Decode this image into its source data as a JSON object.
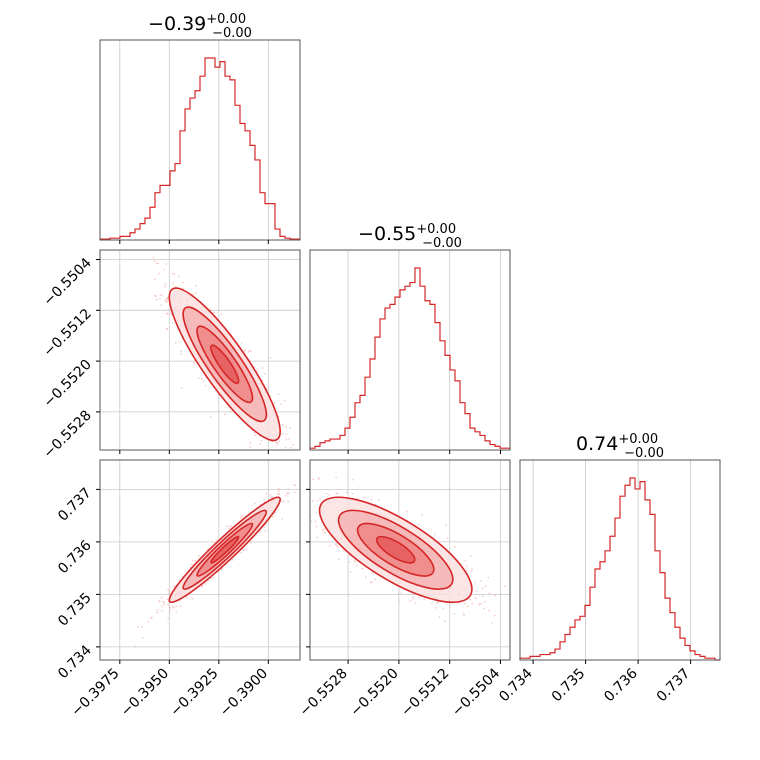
{
  "chart_data": {
    "type": "corner",
    "color": "#d62728",
    "grid": true,
    "titles": [
      {
        "value": "−0.39",
        "plus": "+0.00",
        "minus": "−0.00"
      },
      {
        "value": "−0.55",
        "plus": "+0.00",
        "minus": "−0.00"
      },
      {
        "value": "0.74",
        "plus": "+0.00",
        "minus": "−0.00"
      }
    ],
    "params": [
      {
        "range": [
          -0.3985,
          -0.3884
        ],
        "ticks": [
          -0.3975,
          -0.395,
          -0.3925,
          -0.39
        ],
        "tick_labels": [
          "−0.3975",
          "−0.3950",
          "−0.3925",
          "−0.3900"
        ]
      },
      {
        "range": [
          -0.5534,
          -0.55025
        ],
        "ticks": [
          -0.5528,
          -0.552,
          -0.5512,
          -0.5504
        ],
        "tick_labels": [
          "−0.5528",
          "−0.5520",
          "−0.5512",
          "−0.5504"
        ]
      },
      {
        "range": [
          0.73375,
          0.73756
        ],
        "ticks": [
          0.734,
          0.735,
          0.736,
          0.737
        ],
        "tick_labels": [
          "0.734",
          "0.735",
          "0.736",
          "0.737"
        ]
      }
    ],
    "histograms": [
      {
        "bin_count": 40,
        "counts": [
          0.5,
          0.5,
          1,
          1,
          2,
          2,
          4,
          6,
          9,
          12,
          18,
          26,
          30,
          30,
          38,
          42,
          60,
          72,
          78,
          82,
          90,
          100,
          100,
          95,
          98,
          90,
          88,
          74,
          64,
          60,
          52,
          44,
          26,
          20,
          20,
          6,
          2,
          1,
          0.5,
          0.5
        ]
      },
      {
        "bin_count": 40,
        "counts": [
          1,
          2,
          4,
          5,
          6,
          6,
          8,
          12,
          18,
          26,
          30,
          40,
          50,
          62,
          72,
          78,
          80,
          84,
          88,
          90,
          92,
          100,
          90,
          82,
          80,
          70,
          60,
          52,
          44,
          38,
          26,
          20,
          12,
          10,
          8,
          5,
          3,
          2,
          1,
          1
        ]
      },
      {
        "bin_count": 40,
        "counts": [
          1,
          1,
          2,
          2,
          3,
          3,
          4,
          6,
          10,
          14,
          18,
          22,
          24,
          30,
          40,
          50,
          54,
          60,
          68,
          78,
          90,
          96,
          100,
          94,
          98,
          88,
          80,
          60,
          48,
          34,
          26,
          18,
          12,
          8,
          5,
          3,
          2,
          1,
          1,
          0
        ]
      }
    ],
    "pair_stats": [
      {
        "x_param": 0,
        "y_param": 1,
        "mean": [
          -0.3922,
          -0.55205
        ],
        "std": [
          0.0014,
          0.0006
        ],
        "corr": -0.88
      },
      {
        "x_param": 0,
        "y_param": 2,
        "mean": [
          -0.3922,
          0.73585
        ],
        "std": [
          0.0014,
          0.0005
        ],
        "corr": 0.96
      },
      {
        "x_param": 1,
        "y_param": 2,
        "mean": [
          -0.55205,
          0.73585
        ],
        "std": [
          0.0006,
          0.0005
        ],
        "corr": -0.75
      }
    ],
    "contour_levels_sigma": [
      0.5,
      1.0,
      1.5,
      2.0
    ]
  }
}
